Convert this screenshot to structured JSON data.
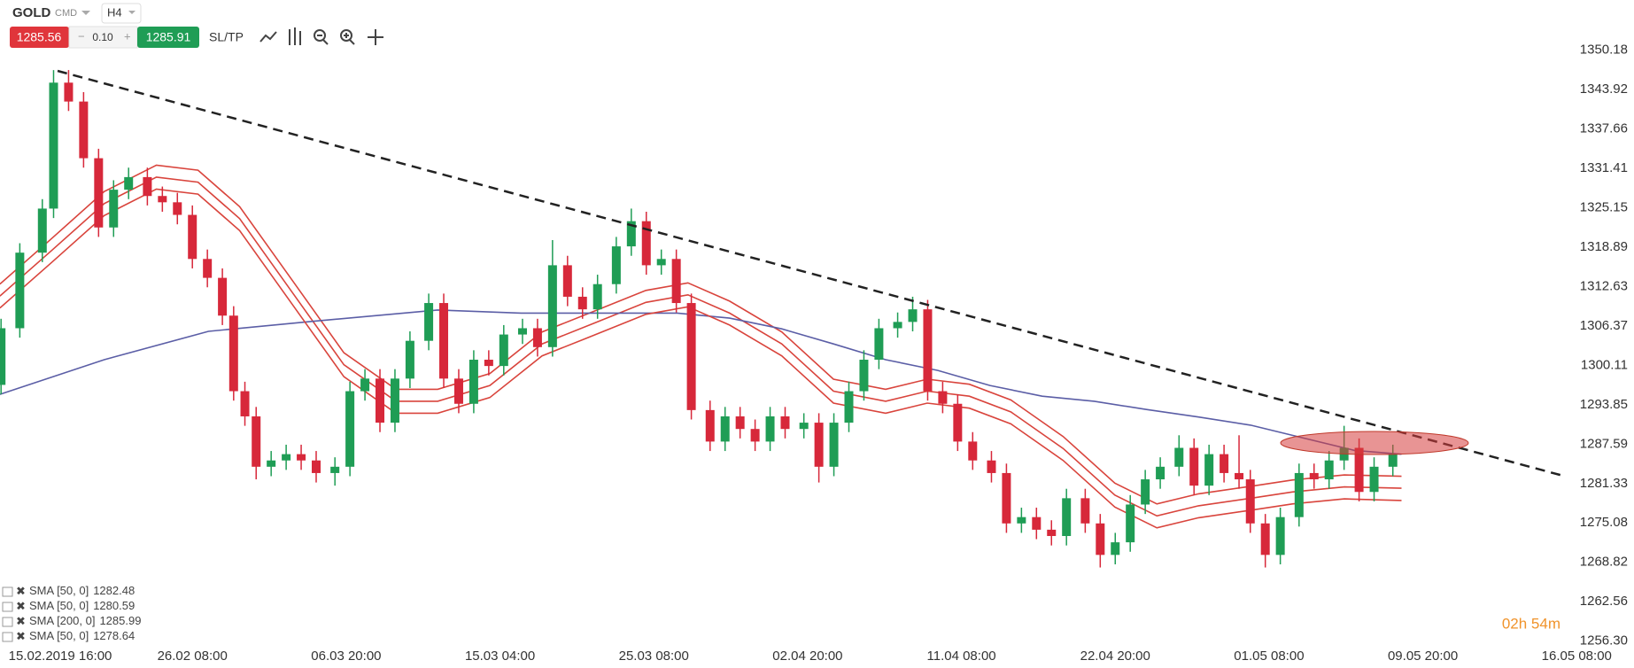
{
  "toolbar": {
    "symbol": "GOLD",
    "market": "CMD",
    "timeframe": "H4",
    "sell_price": 1285.56,
    "spread": "0.10",
    "buy_price": 1285.91,
    "sl_tp": "SL/TP"
  },
  "chart_data": {
    "type": "candlestick",
    "countdown": "02h 54m",
    "up_color": "#1f9d55",
    "down_color": "#d7283a",
    "grid": false,
    "xlim": [
      -15.28,
      420.28
    ],
    "ylim": [
      1255.47,
      1354.82
    ],
    "xticks": [
      {
        "value": 0,
        "label": "15.02.2019 16:00"
      },
      {
        "value": 36,
        "label": "26.02 08:00"
      },
      {
        "value": 77,
        "label": "06.03 20:00"
      },
      {
        "value": 118,
        "label": "15.03 04:00"
      },
      {
        "value": 159,
        "label": "25.03 08:00"
      },
      {
        "value": 200,
        "label": "02.04 20:00"
      },
      {
        "value": 241,
        "label": "11.04 08:00"
      },
      {
        "value": 282,
        "label": "22.04 20:00"
      },
      {
        "value": 323,
        "label": "01.05 08:00"
      },
      {
        "value": 364,
        "label": "09.05 20:00"
      },
      {
        "value": 405,
        "label": "16.05 08:00"
      }
    ],
    "yticks": [
      1350.18,
      1343.92,
      1337.66,
      1331.41,
      1325.15,
      1318.89,
      1312.63,
      1306.37,
      1300.11,
      1293.85,
      1287.59,
      1281.33,
      1275.08,
      1268.82,
      1262.56,
      {
        "value": 1256.3,
        "label": "1256.30"
      }
    ],
    "x": [
      -15,
      -10,
      -4,
      -1,
      3,
      7,
      11,
      15,
      19,
      24,
      28,
      32,
      36,
      40,
      44,
      47,
      50,
      53,
      57,
      61,
      65,
      69,
      74,
      78,
      82,
      86,
      90,
      94,
      99,
      103,
      107,
      111,
      115,
      119,
      124,
      128,
      132,
      136,
      140,
      144,
      149,
      153,
      157,
      161,
      165,
      169,
      174,
      178,
      182,
      186,
      190,
      194,
      199,
      203,
      207,
      211,
      215,
      219,
      224,
      228,
      232,
      236,
      240,
      244,
      249,
      253,
      257,
      261,
      265,
      269,
      274,
      278,
      282,
      286,
      290,
      294,
      299,
      303,
      307,
      311,
      315,
      318,
      322,
      326,
      331,
      335,
      339,
      343,
      347,
      351,
      356
    ],
    "open": [
      1297,
      1306,
      1318,
      1325,
      1345,
      1342,
      1333,
      1322,
      1328,
      1330,
      1327,
      1326,
      1324,
      1317,
      1314,
      1308,
      1296,
      1292,
      1284,
      1285,
      1286,
      1285,
      1283,
      1284,
      1296,
      1298,
      1291,
      1298,
      1304,
      1310,
      1298,
      1294,
      1301,
      1300,
      1305,
      1306,
      1303,
      1316,
      1311,
      1309,
      1313,
      1319,
      1323,
      1316,
      1317,
      1310,
      1293,
      1288,
      1292,
      1290,
      1288,
      1292,
      1290,
      1291,
      1284,
      1291,
      1296,
      1301,
      1306,
      1307,
      1309,
      1296,
      1294,
      1288,
      1285,
      1283,
      1275,
      1276,
      1274,
      1273,
      1279,
      1275,
      1270,
      1272,
      1278,
      1282,
      1284,
      1287,
      1281,
      1286,
      1283,
      1282,
      1275,
      1270,
      1276,
      1283,
      1282,
      1285,
      1287,
      1280,
      1284
    ],
    "high": [
      1307.5,
      1319.5,
      1326.5,
      1347,
      1347,
      1343.5,
      1334.5,
      1329.5,
      1331.5,
      1331.5,
      1328.5,
      1327.5,
      1325.5,
      1318.5,
      1315.5,
      1309.5,
      1297.5,
      1293.5,
      1286.5,
      1287.5,
      1287.5,
      1286.5,
      1285.5,
      1297.5,
      1299.5,
      1299.5,
      1299.5,
      1305.5,
      1311.5,
      1311.5,
      1299.5,
      1302.5,
      1302.5,
      1306.5,
      1307.5,
      1307.5,
      1320,
      1317.5,
      1312.5,
      1314.5,
      1320.5,
      1325,
      1324.5,
      1318.5,
      1318.5,
      1311.5,
      1294.5,
      1293.5,
      1293.5,
      1291.5,
      1293.5,
      1293.5,
      1292.5,
      1292.5,
      1292.5,
      1297.5,
      1302.5,
      1307.5,
      1308.5,
      1311,
      1310.5,
      1297.5,
      1295.5,
      1289.5,
      1286.5,
      1284.5,
      1277.5,
      1277.5,
      1275.5,
      1280.5,
      1280.5,
      1276.5,
      1273.5,
      1279.5,
      1283.5,
      1285.5,
      1289,
      1288.5,
      1287.5,
      1287.5,
      1289,
      1283.5,
      1276.5,
      1277.5,
      1284.5,
      1284.5,
      1286.5,
      1290.5,
      1288.5,
      1285.5,
      1287.5
    ],
    "low": [
      1295.5,
      1304.5,
      1316.5,
      1323.5,
      1340.5,
      1331.5,
      1320.5,
      1320.5,
      1326.5,
      1325.5,
      1324.5,
      1322.5,
      1315.5,
      1312.5,
      1306.5,
      1294.5,
      1290.5,
      1282,
      1282.5,
      1283.5,
      1283.5,
      1281.5,
      1281,
      1282.5,
      1294.5,
      1289.5,
      1289.5,
      1296.5,
      1302.5,
      1296.5,
      1292.5,
      1292.5,
      1298.5,
      1298.5,
      1303.5,
      1301.5,
      1301.5,
      1309.5,
      1307.5,
      1307.5,
      1311.5,
      1317.5,
      1314.5,
      1314.5,
      1308.5,
      1291.5,
      1286.5,
      1286.5,
      1288.5,
      1286.5,
      1286.5,
      1288.5,
      1288.5,
      1281.5,
      1282.5,
      1289.5,
      1294.5,
      1299.5,
      1304.5,
      1305.5,
      1294.5,
      1292.5,
      1286.5,
      1283.5,
      1281.5,
      1273.5,
      1273.5,
      1272.5,
      1271.5,
      1271.5,
      1273.5,
      1268,
      1268.5,
      1270.5,
      1276.5,
      1280.5,
      1282.5,
      1279.5,
      1279.5,
      1281.5,
      1280.5,
      1273.5,
      1268,
      1268.5,
      1274.5,
      1280.5,
      1280.5,
      1283.5,
      1278.5,
      1278.5,
      1282.5
    ],
    "close": [
      1306,
      1318,
      1325,
      1345,
      1342,
      1333,
      1322,
      1328,
      1330,
      1327,
      1326,
      1324,
      1317,
      1314,
      1308,
      1296,
      1292,
      1284,
      1285,
      1286,
      1285,
      1283,
      1284,
      1296,
      1298,
      1291,
      1298,
      1304,
      1310,
      1298,
      1294,
      1301,
      1300,
      1305,
      1306,
      1303,
      1316,
      1311,
      1309,
      1313,
      1319,
      1323,
      1316,
      1317,
      1310,
      1293,
      1288,
      1292,
      1290,
      1288,
      1292,
      1290,
      1291,
      1284,
      1291,
      1296,
      1301,
      1306,
      1307,
      1309,
      1296,
      1294,
      1288,
      1285,
      1283,
      1275,
      1276,
      1274,
      1273,
      1279,
      1275,
      1270,
      1272,
      1278,
      1282,
      1284,
      1287,
      1281,
      1286,
      1283,
      1282,
      1275,
      1270,
      1276,
      1283,
      1282,
      1285,
      1287,
      1280,
      1284,
      1286
    ],
    "series": [
      {
        "name": "SMA [50, 0]",
        "last_value": 1282.48,
        "color": "#d9443c",
        "x": [
          -15.3,
          -1.4,
          12.5,
          26.4,
          37.5,
          48.6,
          62.5,
          76.4,
          90.3,
          101.4,
          115.3,
          129.2,
          143.1,
          156.9,
          168.1,
          179.2,
          193.1,
          206.9,
          220.8,
          231.9,
          243.1,
          254.2,
          268.1,
          281.9,
          293.1,
          304.2,
          318.1,
          329.2,
          343.1,
          358.3
        ],
        "values": [
          1313.0,
          1320.3,
          1327.7,
          1331.9,
          1331.1,
          1325.3,
          1313.7,
          1302.1,
          1296.3,
          1296.3,
          1298.8,
          1305.4,
          1308.7,
          1312.0,
          1313.2,
          1310.3,
          1305.4,
          1297.9,
          1296.3,
          1297.9,
          1297.1,
          1294.6,
          1288.8,
          1281.4,
          1278.1,
          1279.7,
          1280.9,
          1281.9,
          1282.7,
          1282.48
        ]
      },
      {
        "name": "SMA [50, 0]",
        "last_value": 1280.59,
        "color": "#d9443c",
        "x": [
          -15.3,
          -1.4,
          12.5,
          26.4,
          37.5,
          48.6,
          62.5,
          76.4,
          90.3,
          101.4,
          115.3,
          129.2,
          143.1,
          156.9,
          168.1,
          179.2,
          193.1,
          206.9,
          220.8,
          231.9,
          243.1,
          254.2,
          268.1,
          281.9,
          293.1,
          304.2,
          318.1,
          329.2,
          343.1,
          358.3
        ],
        "values": [
          1311.1,
          1318.4,
          1325.8,
          1330.0,
          1329.2,
          1323.4,
          1311.8,
          1300.2,
          1294.4,
          1294.4,
          1296.9,
          1303.5,
          1306.8,
          1310.1,
          1311.3,
          1308.4,
          1303.5,
          1296.0,
          1294.4,
          1296.0,
          1295.2,
          1292.7,
          1286.9,
          1279.5,
          1276.2,
          1277.8,
          1279.0,
          1280.0,
          1280.8,
          1280.59
        ]
      },
      {
        "name": "SMA [200, 0]",
        "last_value": 1285.99,
        "color": "#5b5ea6",
        "x": [
          -15.3,
          12.5,
          40.3,
          68.1,
          101.4,
          123.6,
          151.4,
          165.3,
          179.2,
          193.1,
          206.9,
          220.8,
          234.7,
          248.6,
          262.5,
          276.4,
          290.3,
          304.2,
          318.1,
          331.9,
          345.8,
          358.3
        ],
        "values": [
          1295.5,
          1301.0,
          1305.5,
          1307.1,
          1308.9,
          1308.4,
          1308.4,
          1308.4,
          1307.6,
          1305.9,
          1303.5,
          1301.0,
          1299.3,
          1296.9,
          1295.2,
          1294.4,
          1293.1,
          1291.9,
          1290.6,
          1288.6,
          1286.6,
          1285.99
        ]
      },
      {
        "name": "SMA [50, 0]",
        "last_value": 1278.64,
        "color": "#d9443c",
        "x": [
          -15.3,
          -1.4,
          12.5,
          26.4,
          37.5,
          48.6,
          62.5,
          76.4,
          90.3,
          101.4,
          115.3,
          129.2,
          143.1,
          156.9,
          168.1,
          179.2,
          193.1,
          206.9,
          220.8,
          231.9,
          243.1,
          254.2,
          268.1,
          281.9,
          293.1,
          304.2,
          318.1,
          329.2,
          343.1,
          358.3
        ],
        "values": [
          1309.2,
          1316.5,
          1323.9,
          1328.1,
          1327.3,
          1321.5,
          1309.9,
          1298.3,
          1292.5,
          1292.5,
          1295.0,
          1301.6,
          1304.9,
          1308.2,
          1309.4,
          1306.5,
          1301.6,
          1294.1,
          1292.5,
          1294.1,
          1293.3,
          1290.8,
          1285.0,
          1277.6,
          1274.3,
          1275.9,
          1277.1,
          1278.1,
          1278.9,
          1278.64
        ]
      }
    ]
  }
}
